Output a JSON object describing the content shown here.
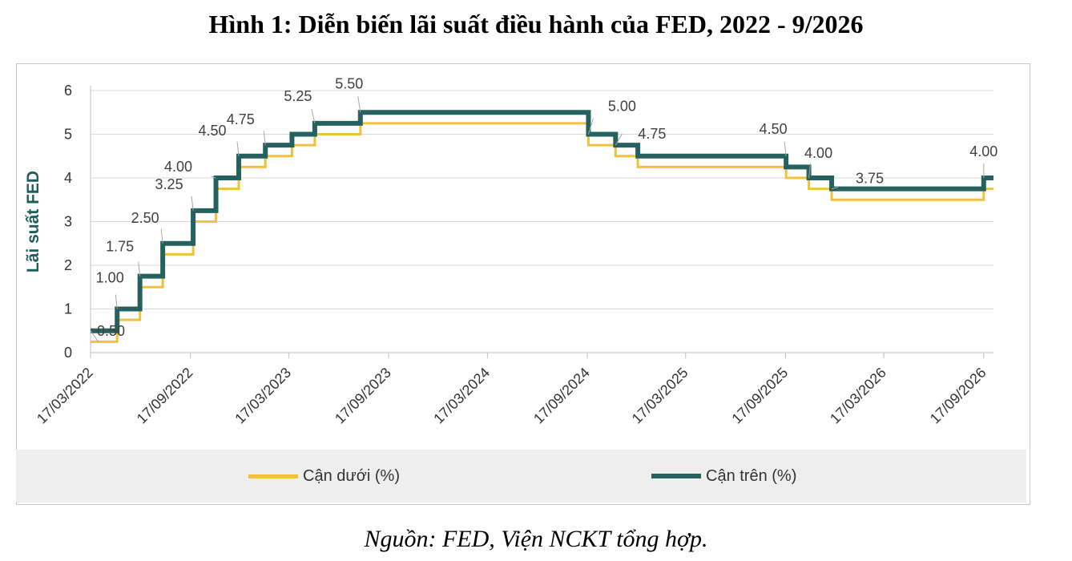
{
  "figure": {
    "title": "Hình 1: Diễn biến lãi suất điều hành của FED, 2022 - 9/2026",
    "source": "Nguồn: FED, Viện NCKT tổng hợp."
  },
  "chart_data": {
    "type": "line",
    "step": true,
    "title": "",
    "xlabel": "",
    "ylabel": "Lãi suất FED",
    "ylim": [
      0,
      6
    ],
    "yticks": [
      "0",
      "1",
      "2",
      "3",
      "4",
      "5",
      "6"
    ],
    "xticks": [
      "17/03/2022",
      "17/09/2022",
      "17/03/2023",
      "17/09/2023",
      "17/03/2024",
      "17/09/2024",
      "17/03/2025",
      "17/09/2025",
      "17/03/2026",
      "17/09/2026"
    ],
    "xrange": [
      "2022-03-17",
      "2026-10-05"
    ],
    "grid": true,
    "legend_position": "bottom",
    "series": [
      {
        "name": "Cận dưới (%)",
        "color": "#f2c13c",
        "points": [
          [
            "2022-03-17",
            0.25
          ],
          [
            "2022-05-05",
            0.75
          ],
          [
            "2022-06-16",
            1.5
          ],
          [
            "2022-07-28",
            2.25
          ],
          [
            "2022-09-22",
            3.0
          ],
          [
            "2022-11-03",
            3.75
          ],
          [
            "2022-12-15",
            4.25
          ],
          [
            "2023-02-02",
            4.5
          ],
          [
            "2023-03-23",
            4.75
          ],
          [
            "2023-05-04",
            5.0
          ],
          [
            "2023-07-27",
            5.25
          ],
          [
            "2024-09-19",
            4.75
          ],
          [
            "2024-11-08",
            4.5
          ],
          [
            "2024-12-19",
            4.25
          ],
          [
            "2025-09-18",
            4.0
          ],
          [
            "2025-10-30",
            3.75
          ],
          [
            "2025-12-11",
            3.5
          ],
          [
            "2026-09-17",
            3.75
          ],
          [
            "2026-10-05",
            3.75
          ]
        ]
      },
      {
        "name": "Cận trên (%)",
        "color": "#24615f",
        "points": [
          [
            "2022-03-17",
            0.5
          ],
          [
            "2022-05-05",
            1.0
          ],
          [
            "2022-06-16",
            1.75
          ],
          [
            "2022-07-28",
            2.5
          ],
          [
            "2022-09-22",
            3.25
          ],
          [
            "2022-11-03",
            4.0
          ],
          [
            "2022-12-15",
            4.5
          ],
          [
            "2023-02-02",
            4.75
          ],
          [
            "2023-03-23",
            5.0
          ],
          [
            "2023-05-04",
            5.25
          ],
          [
            "2023-07-27",
            5.5
          ],
          [
            "2024-09-19",
            5.0
          ],
          [
            "2024-11-08",
            4.75
          ],
          [
            "2024-12-19",
            4.5
          ],
          [
            "2025-09-18",
            4.25
          ],
          [
            "2025-10-30",
            4.0
          ],
          [
            "2025-12-11",
            3.75
          ],
          [
            "2026-09-17",
            4.0
          ],
          [
            "2026-10-05",
            4.0
          ]
        ]
      }
    ],
    "annotations": [
      {
        "text": "0.50",
        "date": "2022-03-17",
        "value": 0.5
      },
      {
        "text": "1.00",
        "date": "2022-05-05",
        "value": 1.0
      },
      {
        "text": "1.75",
        "date": "2022-06-16",
        "value": 1.75
      },
      {
        "text": "2.50",
        "date": "2022-07-28",
        "value": 2.5
      },
      {
        "text": "3.25",
        "date": "2022-09-22",
        "value": 3.25
      },
      {
        "text": "4.00",
        "date": "2022-11-03",
        "value": 4.0
      },
      {
        "text": "4.50",
        "date": "2022-12-15",
        "value": 4.5
      },
      {
        "text": "4.75",
        "date": "2023-02-02",
        "value": 4.75
      },
      {
        "text": "5.25",
        "date": "2023-05-04",
        "value": 5.25
      },
      {
        "text": "5.50",
        "date": "2023-07-27",
        "value": 5.5
      },
      {
        "text": "5.00",
        "date": "2024-09-19",
        "value": 5.0
      },
      {
        "text": "4.75",
        "date": "2024-11-08",
        "value": 4.75
      },
      {
        "text": "4.50",
        "date": "2025-09-18",
        "value": 4.5
      },
      {
        "text": "4.00",
        "date": "2025-10-30",
        "value": 4.0
      },
      {
        "text": "3.75",
        "date": "2025-12-11",
        "value": 3.75
      },
      {
        "text": "4.00",
        "date": "2026-09-17",
        "value": 4.0
      }
    ]
  }
}
